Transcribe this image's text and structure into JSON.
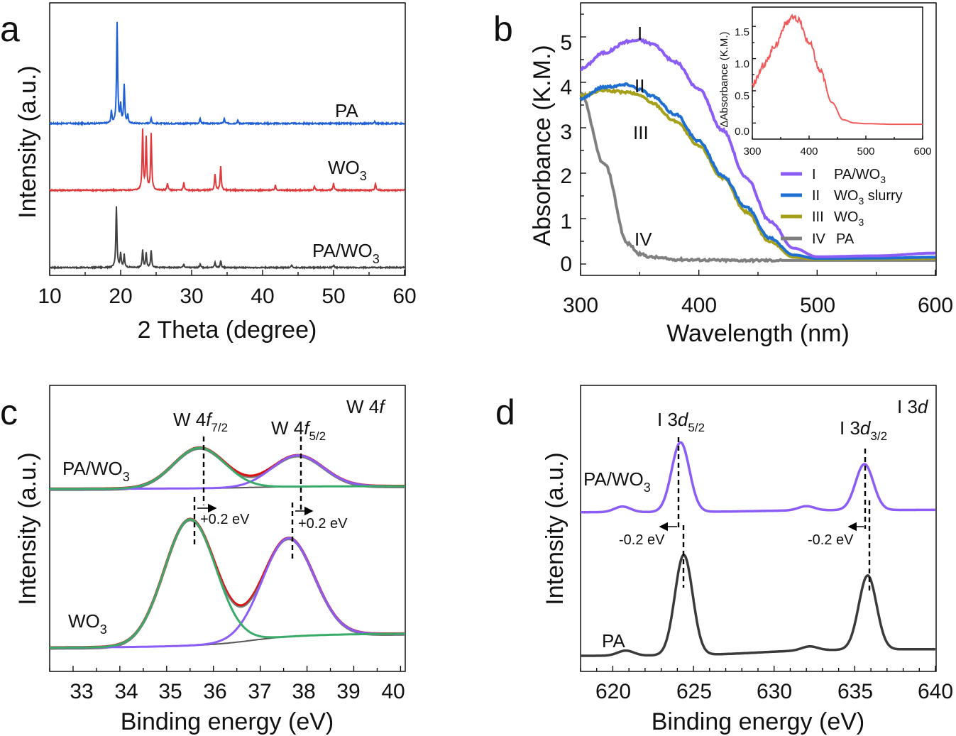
{
  "colors": {
    "PA": "#1f5fd6",
    "WO3": "#e0393b",
    "PA_WO3": "#404040",
    "I": "#8b5cf6",
    "II": "#1f6fd1",
    "III": "#a5a01a",
    "IV": "#808080",
    "inset": "#f05a5a",
    "fit_green": "#3aaa6a",
    "fit_purple": "#8b5cf6",
    "fit_red": "#dd1010",
    "fit_gray": "#555555",
    "xps_purple": "#8b5cf6",
    "xps_dark": "#3a3a3a"
  },
  "panels": {
    "a": {
      "letter": "a",
      "xlabel": "2 Theta (degree)",
      "ylabel": "Intensity (a.u.)",
      "xticks": [
        "10",
        "20",
        "30",
        "40",
        "50",
        "60"
      ]
    },
    "b": {
      "letter": "b",
      "xlabel": "Wavelength (nm)",
      "ylabel": "Absorbance (K.M.)",
      "xticks": [
        "300",
        "400",
        "500",
        "600"
      ],
      "yticks": [
        "0",
        "1",
        "2",
        "3",
        "4",
        "5"
      ]
    },
    "c": {
      "letter": "c",
      "title_prefix": "W 4",
      "title_italic": "f",
      "xlabel": "Binding energy (eV)",
      "ylabel": "Intensity (a.u.)",
      "xticks": [
        "33",
        "34",
        "35",
        "36",
        "37",
        "38",
        "39",
        "40"
      ]
    },
    "d": {
      "letter": "d",
      "title_prefix": "I 3",
      "title_italic": "d",
      "xlabel": "Binding energy (eV)",
      "ylabel": "Intensity (a.u.)",
      "xticks": [
        "620",
        "625",
        "630",
        "635",
        "640"
      ]
    }
  },
  "labels": {
    "a_PA": "PA",
    "a_WO3": "WO",
    "a_PAWO3": "PA/WO",
    "sub3": "3",
    "b_I": "I",
    "b_II": "II",
    "b_III": "III",
    "b_IV": "IV",
    "legend_I_num": "I",
    "legend_I_text": "PA/WO",
    "legend_II_num": "II",
    "legend_II_text_a": "WO",
    "legend_II_text_b": " slurry",
    "legend_III_num": "III",
    "legend_III_text": "WO",
    "legend_IV_num": "IV",
    "legend_IV_text": "PA",
    "inset_ylabel": "ΔAbsorbance (K.M.)",
    "inset_xticks": [
      "300",
      "400",
      "500",
      "600"
    ],
    "inset_yticks": [
      "0.0",
      "0.5",
      "1.0",
      "1.5"
    ],
    "c_PAWO3": "PA/WO",
    "c_WO3": "WO",
    "c_peak1_pre": "W 4",
    "c_peak1_it": "f",
    "c_peak1_sub": "7/2",
    "c_peak2_pre": "W 4",
    "c_peak2_it": "f",
    "c_peak2_sub": "5/2",
    "c_shift1": "+0.2 eV",
    "c_shift2": "+0.2 eV",
    "d_PAWO3": "PA/WO",
    "d_PA": "PA",
    "d_peak1_pre": "I 3",
    "d_peak1_it": "d",
    "d_peak1_sub": "5/2",
    "d_peak2_pre": "I 3",
    "d_peak2_it": "d",
    "d_peak2_sub": "3/2",
    "d_shift1": "-0.2 eV",
    "d_shift2": "-0.2 eV"
  },
  "chart_data": [
    {
      "panel": "a",
      "type": "line",
      "title": "",
      "xlabel": "2 Theta (degree)",
      "ylabel": "Intensity (a.u.)",
      "xlim": [
        10,
        60
      ],
      "series": [
        {
          "name": "PA",
          "peaks": [
            [
              18.7,
              0.12
            ],
            [
              19.5,
              1.0
            ],
            [
              20.0,
              0.18
            ],
            [
              20.5,
              0.38
            ],
            [
              21.0,
              0.08
            ],
            [
              24.3,
              0.05
            ],
            [
              31.2,
              0.05
            ],
            [
              34.6,
              0.05
            ],
            [
              36.5,
              0.03
            ],
            [
              55.8,
              0.02
            ]
          ]
        },
        {
          "name": "WO3",
          "peaks": [
            [
              23.1,
              0.62
            ],
            [
              23.6,
              0.54
            ],
            [
              24.3,
              0.58
            ],
            [
              26.6,
              0.07
            ],
            [
              28.9,
              0.08
            ],
            [
              33.3,
              0.17
            ],
            [
              34.1,
              0.25
            ],
            [
              41.8,
              0.05
            ],
            [
              47.3,
              0.04
            ],
            [
              50.0,
              0.07
            ],
            [
              55.9,
              0.07
            ]
          ]
        },
        {
          "name": "PA/WO3",
          "peaks": [
            [
              19.4,
              0.72
            ],
            [
              20.0,
              0.16
            ],
            [
              20.5,
              0.15
            ],
            [
              23.1,
              0.2
            ],
            [
              23.6,
              0.17
            ],
            [
              24.3,
              0.2
            ],
            [
              28.9,
              0.04
            ],
            [
              31.2,
              0.04
            ],
            [
              33.3,
              0.06
            ],
            [
              34.1,
              0.08
            ],
            [
              44.1,
              0.03
            ],
            [
              50.0,
              0.03
            ]
          ]
        }
      ]
    },
    {
      "panel": "b",
      "type": "line",
      "xlabel": "Wavelength (nm)",
      "ylabel": "Absorbance (K.M.)",
      "xlim": [
        300,
        600
      ],
      "ylim": [
        -0.25,
        5.75
      ],
      "x": [
        300,
        320,
        340,
        350,
        360,
        380,
        400,
        420,
        440,
        460,
        480,
        500,
        550,
        600
      ],
      "series": [
        {
          "name": "I PA/WO3",
          "values": [
            4.3,
            4.65,
            4.9,
            4.93,
            4.85,
            4.45,
            3.85,
            2.95,
            1.9,
            0.95,
            0.35,
            0.16,
            0.18,
            0.24
          ]
        },
        {
          "name": "II WO3 slurry",
          "values": [
            3.65,
            3.9,
            3.95,
            3.85,
            3.7,
            3.3,
            2.7,
            1.95,
            1.25,
            0.58,
            0.2,
            0.12,
            0.13,
            0.15
          ]
        },
        {
          "name": "III WO3",
          "values": [
            3.7,
            3.82,
            3.78,
            3.72,
            3.55,
            3.15,
            2.6,
            1.9,
            1.15,
            0.5,
            0.15,
            0.1,
            0.11,
            0.12
          ]
        },
        {
          "name": "IV PA",
          "values": [
            3.75,
            2.2,
            0.45,
            0.22,
            0.15,
            0.1,
            0.09,
            0.08,
            0.08,
            0.08,
            0.08,
            0.08,
            0.08,
            0.08
          ]
        }
      ],
      "inset": {
        "ylabel": "ΔAbsorbance (K.M.)",
        "xlim": [
          300,
          600
        ],
        "ylim": [
          -0.25,
          1.8
        ],
        "x": [
          300,
          320,
          340,
          360,
          370,
          380,
          400,
          420,
          440,
          460,
          480,
          500,
          550,
          600
        ],
        "values": [
          0.6,
          0.9,
          1.2,
          1.55,
          1.63,
          1.6,
          1.25,
          0.8,
          0.32,
          0.05,
          0.0,
          -0.01,
          -0.02,
          -0.02
        ]
      }
    },
    {
      "panel": "c",
      "type": "line",
      "title": "W 4f",
      "xlabel": "Binding energy (eV)",
      "ylabel": "Intensity (a.u.)",
      "xlim": [
        32.5,
        40.1
      ],
      "series": [
        {
          "name": "PA/WO3 W 4f7/2",
          "center": 35.7,
          "height": 0.52
        },
        {
          "name": "PA/WO3 W 4f5/2",
          "center": 37.8,
          "height": 0.4
        },
        {
          "name": "WO3 W 4f7/2",
          "center": 35.5,
          "height": 1.0
        },
        {
          "name": "WO3 W 4f5/2",
          "center": 37.6,
          "height": 0.78
        }
      ],
      "annotations": [
        "W 4f7/2",
        "W 4f5/2",
        "+0.2 eV",
        "+0.2 eV"
      ]
    },
    {
      "panel": "d",
      "type": "line",
      "title": "I 3d",
      "xlabel": "Binding energy (eV)",
      "ylabel": "Intensity (a.u.)",
      "xlim": [
        618,
        640
      ],
      "series": [
        {
          "name": "PA/WO3",
          "peaks": [
            [
              624.2,
              1.0
            ],
            [
              635.6,
              0.66
            ],
            [
              620.6,
              0.08
            ],
            [
              632.0,
              0.06
            ]
          ]
        },
        {
          "name": "PA",
          "peaks": [
            [
              624.4,
              1.0
            ],
            [
              635.8,
              0.74
            ],
            [
              620.8,
              0.05
            ],
            [
              632.2,
              0.04
            ]
          ]
        }
      ],
      "annotations": [
        "I 3d5/2",
        "I 3d3/2",
        "-0.2 eV",
        "-0.2 eV"
      ]
    }
  ]
}
